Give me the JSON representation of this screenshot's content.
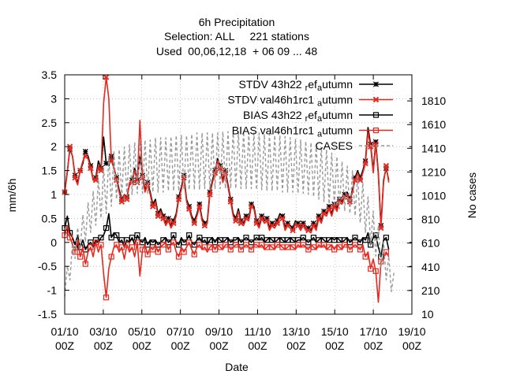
{
  "chart_data": {
    "type": "line",
    "title_lines": [
      "6h Precipitation",
      "Selection: ALL     221 stations",
      "Used  00,06,12,18  + 06 09 ... 48"
    ],
    "xlabel": "Date",
    "ylabel": "mm/6h",
    "y2label": "No cases",
    "x_tick_labels": [
      [
        "01/10",
        "00Z"
      ],
      [
        "03/10",
        "00Z"
      ],
      [
        "05/10",
        "00Z"
      ],
      [
        "07/10",
        "00Z"
      ],
      [
        "09/10",
        "00Z"
      ],
      [
        "11/10",
        "00Z"
      ],
      [
        "13/10",
        "00Z"
      ],
      [
        "15/10",
        "00Z"
      ],
      [
        "17/10",
        "00Z"
      ],
      [
        "19/10",
        "00Z"
      ]
    ],
    "xlim_days": [
      1,
      19
    ],
    "ylim": [
      -1.5,
      3.5
    ],
    "y_ticks": [
      -1.5,
      -1,
      -0.5,
      0,
      0.5,
      1,
      1.5,
      2,
      2.5,
      3,
      3.5
    ],
    "y2lim": [
      10,
      2030
    ],
    "y2_ticks": [
      10,
      210,
      410,
      610,
      810,
      1010,
      1210,
      1410,
      1610,
      1810
    ],
    "legend_position": "top-right",
    "colors": {
      "black": "#000000",
      "red": "#e8281e",
      "gray": "#999999"
    },
    "series": [
      {
        "name": "STDV 43h22_ref_autumn",
        "legend_parts": [
          "STDV 43h22",
          "r",
          "ef",
          "a",
          "utumn"
        ],
        "color": "#000000",
        "marker": "star",
        "dash": false,
        "axis": "y1",
        "values": [
          1.05,
          1.48,
          1.95,
          1.8,
          1.4,
          1.25,
          1.5,
          1.65,
          1.9,
          1.8,
          1.6,
          1.3,
          1.35,
          1.7,
          1.55,
          2.2,
          1.65,
          1.6,
          1.8,
          1.55,
          1.35,
          1.1,
          0.9,
          1.0,
          0.95,
          1.2,
          1.3,
          1.55,
          1.3,
          1.8,
          1.4,
          1.1,
          1.25,
          1.05,
          0.8,
          0.9,
          0.6,
          0.7,
          0.55,
          0.4,
          0.5,
          0.35,
          0.45,
          0.6,
          0.95,
          1.15,
          1.4,
          0.9,
          0.75,
          0.55,
          0.45,
          0.6,
          0.8,
          0.5,
          0.4,
          0.45,
          1.05,
          1.3,
          1.5,
          1.75,
          1.6,
          1.3,
          1.5,
          1.2,
          0.9,
          0.6,
          0.5,
          0.7,
          0.45,
          0.4,
          0.55,
          0.5,
          0.8,
          0.75,
          0.45,
          0.35,
          0.55,
          0.45,
          0.5,
          0.3,
          0.4,
          0.35,
          0.45,
          0.6,
          0.55,
          0.3,
          0.4,
          0.35,
          0.3,
          0.45,
          0.4,
          0.3,
          0.4,
          0.3,
          0.3,
          0.25,
          0.4,
          0.3,
          0.55,
          0.45,
          0.65,
          0.6,
          0.75,
          0.6,
          0.8,
          0.7,
          0.9,
          0.85,
          1.0,
          1.05,
          0.9,
          1.1,
          1.35,
          1.5,
          1.35,
          1.5,
          1.7,
          2.4,
          2.05,
          1.5,
          2.1,
          1.45,
          0.35,
          1.3,
          1.55,
          1.3
        ]
      },
      {
        "name": "STDV val46h1rc1_autumn",
        "legend_parts": [
          "STDV val46h1rc1",
          "",
          "",
          "a",
          "utumn"
        ],
        "color": "#e8281e",
        "marker": "x",
        "dash": false,
        "axis": "y1",
        "values": [
          1.05,
          1.45,
          2.0,
          1.8,
          1.35,
          1.2,
          1.5,
          1.7,
          1.8,
          1.75,
          1.55,
          1.3,
          1.3,
          1.6,
          1.5,
          2.9,
          3.45,
          3.0,
          1.7,
          1.55,
          1.3,
          1.05,
          0.85,
          1.0,
          0.9,
          1.25,
          1.25,
          1.5,
          1.25,
          2.55,
          1.35,
          1.05,
          1.2,
          1.0,
          0.75,
          0.85,
          0.55,
          0.65,
          0.5,
          0.35,
          0.45,
          0.3,
          0.4,
          0.55,
          0.9,
          1.1,
          1.35,
          0.85,
          0.7,
          0.5,
          0.4,
          0.55,
          0.75,
          0.45,
          0.35,
          0.4,
          1.0,
          1.25,
          1.45,
          1.7,
          1.55,
          1.25,
          1.45,
          1.15,
          0.85,
          0.55,
          0.45,
          0.65,
          0.4,
          0.35,
          0.5,
          0.45,
          0.75,
          0.7,
          0.4,
          0.3,
          0.5,
          0.4,
          0.45,
          0.25,
          0.35,
          0.3,
          0.4,
          0.55,
          0.5,
          0.25,
          0.35,
          0.3,
          0.25,
          0.4,
          0.35,
          0.25,
          0.35,
          0.25,
          0.25,
          0.2,
          0.35,
          0.25,
          0.5,
          0.4,
          0.6,
          0.55,
          0.7,
          0.55,
          0.75,
          0.65,
          0.85,
          0.8,
          0.95,
          1.0,
          0.85,
          1.05,
          1.3,
          1.45,
          1.3,
          1.45,
          1.65,
          2.3,
          2.0,
          1.45,
          2.05,
          1.4,
          0.3,
          1.25,
          1.6,
          1.25
        ]
      },
      {
        "name": "BIAS 43h22_ref_autumn",
        "legend_parts": [
          "BIAS 43h22",
          "r",
          "ef",
          "a",
          "utumn"
        ],
        "color": "#000000",
        "marker": "square",
        "dash": false,
        "axis": "y1",
        "values": [
          0.3,
          0.55,
          0.2,
          0.1,
          -0.05,
          0.15,
          -0.1,
          0.05,
          -0.15,
          -0.05,
          0.0,
          -0.1,
          0.05,
          0.0,
          0.1,
          0.15,
          0.3,
          0.6,
          0.1,
          0.2,
          0.15,
          0.0,
          0.05,
          -0.1,
          0.05,
          0.0,
          0.1,
          -0.05,
          0.15,
          0.05,
          0.0,
          0.1,
          -0.05,
          0.05,
          0.0,
          0.05,
          -0.05,
          0.0,
          0.05,
          0.1,
          0.0,
          0.05,
          0.15,
          0.0,
          -0.05,
          0.1,
          0.0,
          0.05,
          0.15,
          0.0,
          -0.05,
          0.05,
          0.1,
          0.0,
          0.05,
          -0.05,
          0.05,
          0.1,
          0.0,
          0.1,
          0.05,
          0.0,
          0.05,
          0.1,
          0.0,
          0.05,
          0.05,
          0.1,
          0.0,
          0.05,
          0.1,
          0.05,
          0.0,
          0.05,
          0.1,
          0.05,
          0.1,
          0.0,
          0.05,
          0.1,
          0.05,
          0.0,
          0.05,
          0.1,
          0.05,
          0.0,
          0.05,
          0.1,
          0.05,
          0.0,
          0.05,
          0.05,
          0.1,
          0.05,
          0.0,
          0.05,
          0.1,
          0.0,
          0.05,
          0.1,
          0.05,
          0.0,
          0.05,
          0.1,
          0.05,
          0.1,
          0.05,
          0.0,
          0.05,
          0.1,
          0.0,
          0.05,
          0.1,
          0.05,
          0.0,
          0.1,
          0.05,
          0.2,
          -0.05,
          0.1,
          0.15,
          -0.1,
          -0.3,
          0.05,
          0.1,
          -0.15
        ]
      },
      {
        "name": "BIAS val46h1rc1_autumn",
        "legend_parts": [
          "BIAS val46h1rc1",
          "",
          "",
          "a",
          "utumn"
        ],
        "color": "#e8281e",
        "marker": "square",
        "dash": false,
        "axis": "y1",
        "values": [
          0.15,
          0.35,
          0.1,
          -0.05,
          -0.2,
          0.05,
          -0.3,
          -0.1,
          -0.45,
          -0.2,
          -0.1,
          -0.3,
          0.0,
          -0.2,
          -0.05,
          -0.65,
          -1.15,
          -0.55,
          -0.3,
          -0.1,
          -0.05,
          -0.2,
          -0.1,
          -0.35,
          -0.05,
          -0.2,
          -0.1,
          -0.3,
          0.0,
          -0.7,
          -0.15,
          -0.05,
          -0.25,
          -0.1,
          -0.15,
          -0.05,
          -0.2,
          -0.1,
          -0.05,
          0.0,
          -0.15,
          -0.05,
          0.0,
          -0.2,
          -0.3,
          -0.1,
          -0.2,
          -0.1,
          0.0,
          -0.15,
          -0.25,
          -0.1,
          -0.05,
          -0.15,
          -0.1,
          -0.2,
          -0.1,
          -0.05,
          -0.15,
          -0.05,
          -0.1,
          -0.15,
          -0.05,
          -0.05,
          -0.15,
          -0.1,
          -0.05,
          -0.05,
          -0.15,
          -0.1,
          -0.05,
          -0.1,
          -0.15,
          -0.05,
          -0.05,
          -0.1,
          -0.05,
          -0.15,
          -0.1,
          -0.05,
          -0.1,
          -0.15,
          -0.05,
          -0.05,
          -0.1,
          -0.15,
          -0.1,
          -0.05,
          -0.1,
          -0.15,
          -0.05,
          -0.1,
          -0.05,
          -0.1,
          -0.15,
          -0.05,
          -0.1,
          -0.15,
          -0.05,
          -0.1,
          -0.05,
          -0.15,
          -0.1,
          -0.05,
          -0.15,
          -0.05,
          -0.1,
          -0.15,
          -0.05,
          -0.05,
          -0.15,
          -0.1,
          -0.05,
          -0.1,
          -0.15,
          -0.05,
          -0.3,
          -0.2,
          -0.55,
          -0.35,
          -0.6,
          -1.25,
          -0.4,
          -0.35,
          -0.2,
          -0.3
        ]
      },
      {
        "name": "CASES",
        "legend_parts": [
          "CASES",
          "",
          "",
          "",
          ""
        ],
        "color": "#999999",
        "marker": "none",
        "dash": true,
        "axis": "y2",
        "values": [
          160,
          420,
          300,
          620,
          480,
          740,
          560,
          850,
          620,
          950,
          700,
          1050,
          760,
          1150,
          820,
          1250,
          860,
          1350,
          920,
          1380,
          980,
          1400,
          1000,
          1420,
          1010,
          1440,
          1020,
          1460,
          1030,
          1470,
          1030,
          1480,
          1030,
          1480,
          1040,
          1500,
          1040,
          1500,
          1040,
          1500,
          1050,
          1510,
          1050,
          1520,
          1050,
          1520,
          1060,
          1520,
          1060,
          1530,
          1060,
          1540,
          1060,
          1540,
          1070,
          1540,
          1060,
          1540,
          1070,
          1540,
          1070,
          1550,
          1070,
          1550,
          1070,
          1560,
          1070,
          1550,
          1070,
          1550,
          1070,
          1540,
          1070,
          1540,
          1060,
          1540,
          1060,
          1530,
          1050,
          1530,
          1050,
          1520,
          1050,
          1520,
          1040,
          1510,
          1040,
          1500,
          1040,
          1490,
          1030,
          1480,
          1030,
          1470,
          1020,
          1460,
          1000,
          1440,
          980,
          1420,
          960,
          1400,
          940,
          1370,
          920,
          1340,
          900,
          1300,
          880,
          1260,
          860,
          1220,
          840,
          1180,
          780,
          1120,
          700,
          1000,
          600,
          880,
          500,
          760,
          400,
          620,
          300,
          500,
          200,
          360
        ]
      }
    ]
  }
}
